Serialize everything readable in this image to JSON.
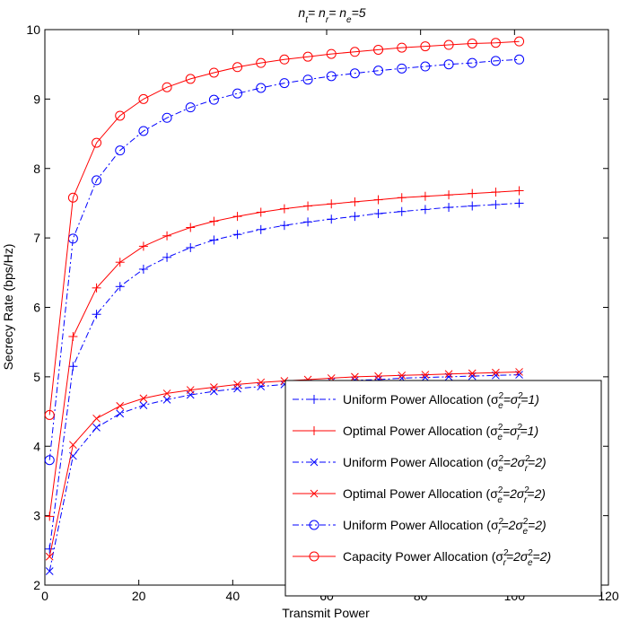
{
  "chart_data": {
    "type": "line",
    "title": {
      "base": "n",
      "parts": [
        {
          "sub": "t",
          "after": "= n"
        },
        {
          "sub": "r",
          "after": "= n"
        },
        {
          "sub": "e",
          "after": "=5"
        }
      ]
    },
    "xlabel": "Transmit Power",
    "ylabel": "Secrecy Rate (bps/Hz)",
    "xlim": [
      0,
      120
    ],
    "ylim": [
      2,
      10
    ],
    "xticks": [
      0,
      20,
      40,
      60,
      80,
      100,
      120
    ],
    "yticks": [
      2,
      3,
      4,
      5,
      6,
      7,
      8,
      9,
      10
    ],
    "grid": false,
    "legend_position": "bottom-right",
    "x": [
      1,
      6,
      11,
      16,
      21,
      26,
      31,
      36,
      41,
      46,
      51,
      56,
      61,
      66,
      71,
      76,
      81,
      86,
      91,
      96,
      101
    ],
    "series": [
      {
        "name": "Uniform Power Allocation (σe2=σr2=1)",
        "legend": {
          "main": "Uniform Power Allocation (",
          "a": "σ",
          "a_sub": "e",
          "a_sup": "2",
          "mid": "=σ",
          "b_sub": "r",
          "b_sup": "2",
          "end": "=1)"
        },
        "color": "#0000ff",
        "line": "dashdot",
        "marker": "plus",
        "values": [
          2.52,
          5.15,
          5.9,
          6.3,
          6.55,
          6.72,
          6.86,
          6.97,
          7.05,
          7.12,
          7.18,
          7.23,
          7.27,
          7.31,
          7.35,
          7.38,
          7.41,
          7.44,
          7.46,
          7.48,
          7.5
        ]
      },
      {
        "name": "Optimal Power Allocation (σe2=σr2=1)",
        "legend": {
          "main": "Optimal Power Allocation (",
          "a": "σ",
          "a_sub": "e",
          "a_sup": "2",
          "mid": "=σ",
          "b_sub": "r",
          "b_sup": "2",
          "end": "=1)"
        },
        "color": "#ff0000",
        "line": "solid",
        "marker": "plus",
        "values": [
          2.99,
          5.58,
          6.28,
          6.65,
          6.88,
          7.03,
          7.15,
          7.24,
          7.31,
          7.37,
          7.42,
          7.46,
          7.49,
          7.52,
          7.55,
          7.58,
          7.6,
          7.62,
          7.64,
          7.66,
          7.68
        ]
      },
      {
        "name": "Uniform Power Allocation (σe2=2σr2=2)",
        "legend": {
          "main": "Uniform Power Allocation (",
          "a": "σ",
          "a_sub": "e",
          "a_sup": "2",
          "mid": "=2σ",
          "b_sub": "r",
          "b_sup": "2",
          "end": "=2)"
        },
        "color": "#0000ff",
        "line": "dashdot",
        "marker": "x",
        "values": [
          2.2,
          3.86,
          4.27,
          4.47,
          4.59,
          4.67,
          4.74,
          4.79,
          4.83,
          4.86,
          4.89,
          4.91,
          4.93,
          4.95,
          4.96,
          4.98,
          4.99,
          5.0,
          5.01,
          5.02,
          5.03
        ]
      },
      {
        "name": "Optimal Power Allocation (σe2=2σr2=2)",
        "legend": {
          "main": "Optimal Power Allocation (",
          "a": "σ",
          "a_sub": "e",
          "a_sup": "2",
          "mid": "=2σ",
          "b_sub": "r",
          "b_sup": "2",
          "end": "=2)"
        },
        "color": "#ff0000",
        "line": "solid",
        "marker": "x",
        "values": [
          2.41,
          4.02,
          4.4,
          4.58,
          4.69,
          4.76,
          4.81,
          4.85,
          4.89,
          4.92,
          4.94,
          4.96,
          4.98,
          5.0,
          5.01,
          5.02,
          5.03,
          5.04,
          5.05,
          5.06,
          5.07
        ]
      },
      {
        "name": "Uniform Power Allocation (σr2=2σe2=2)",
        "legend": {
          "main": "Uniform Power Allocation (",
          "a": "σ",
          "a_sub": "r",
          "a_sup": "2",
          "mid": "=2σ",
          "b_sub": "e",
          "b_sup": "2",
          "end": "=2)"
        },
        "color": "#0000ff",
        "line": "dashdot",
        "marker": "circle",
        "values": [
          3.8,
          6.99,
          7.83,
          8.26,
          8.54,
          8.73,
          8.88,
          8.99,
          9.08,
          9.16,
          9.23,
          9.28,
          9.33,
          9.37,
          9.41,
          9.44,
          9.47,
          9.5,
          9.52,
          9.55,
          9.57
        ]
      },
      {
        "name": "Capacity Power Allocation (σr2=2σe2=2)",
        "legend": {
          "main": "Capacity Power Allocation (",
          "a": "σ",
          "a_sub": "r",
          "a_sup": "2",
          "mid": "=2σ",
          "b_sub": "e",
          "b_sup": "2",
          "end": "=2)"
        },
        "color": "#ff0000",
        "line": "solid",
        "marker": "circle",
        "values": [
          4.45,
          7.58,
          8.37,
          8.76,
          9.0,
          9.17,
          9.29,
          9.38,
          9.46,
          9.52,
          9.57,
          9.61,
          9.65,
          9.68,
          9.71,
          9.74,
          9.76,
          9.78,
          9.8,
          9.81,
          9.83
        ]
      }
    ]
  }
}
